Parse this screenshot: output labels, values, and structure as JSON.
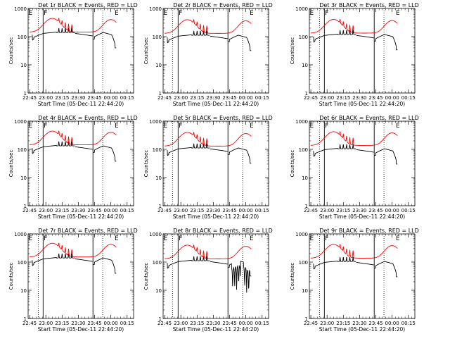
{
  "chart_data": {
    "type": "line",
    "xlabel": "Start Time (05-Dec-11 22:44:20)",
    "ylabel": "Counts/sec",
    "y_scale": "log",
    "ylim": [
      1,
      1000
    ],
    "y_tick_labels": [
      "1",
      "10",
      "100",
      "1000"
    ],
    "xlim_minutes": [
      -1.333,
      96
    ],
    "x_tick_labels": [
      "22:45",
      "23:00",
      "23:15",
      "23:30",
      "23:45",
      "00:00",
      "00:15"
    ],
    "series_colors": {
      "events": "#000000",
      "lld": "#ff0000"
    },
    "region_markers": [
      "E",
      "F",
      "E"
    ],
    "panels": [
      {
        "title": "Det 1r  BLACK = Events, RED = LLD",
        "solid_lines": [
          12.5,
          58.5
        ],
        "dotted_lines": [
          8,
          67.5
        ],
        "events_scale": 1.0,
        "lld_scale": 1.0,
        "events_dropouts": []
      },
      {
        "title": "Det 2r  BLACK = Events, RED = LLD",
        "solid_lines": [
          12.5,
          58.5
        ],
        "dotted_lines": [
          7.5,
          72
        ],
        "events_scale": 0.8,
        "lld_scale": 0.9,
        "events_dropouts": []
      },
      {
        "title": "Det 3r  BLACK = Events, RED = LLD",
        "solid_lines": [
          12.5,
          58.5
        ],
        "dotted_lines": [
          8,
          67.5
        ],
        "events_scale": 0.85,
        "lld_scale": 0.92,
        "events_dropouts": []
      },
      {
        "title": "Det 4r  BLACK = Events, RED = LLD",
        "solid_lines": [
          12.5,
          58.5
        ],
        "dotted_lines": [
          8,
          67.5
        ],
        "events_scale": 0.95,
        "lld_scale": 1.0,
        "events_dropouts": []
      },
      {
        "title": "Det 5r  BLACK = Events, RED = LLD",
        "solid_lines": [
          12.5,
          58.5
        ],
        "dotted_lines": [
          7.5,
          72
        ],
        "events_scale": 0.8,
        "lld_scale": 0.9,
        "events_dropouts": []
      },
      {
        "title": "Det 6r  BLACK = Events, RED = LLD",
        "solid_lines": [
          12.5,
          58.5
        ],
        "dotted_lines": [
          8,
          67.5
        ],
        "events_scale": 0.75,
        "lld_scale": 0.95,
        "events_dropouts": []
      },
      {
        "title": "Det 7r  BLACK = Events, RED = LLD",
        "solid_lines": [
          12.5,
          58.5
        ],
        "dotted_lines": [
          8,
          67.5
        ],
        "events_scale": 1.0,
        "lld_scale": 1.05,
        "events_dropouts": []
      },
      {
        "title": "Det 8r  BLACK = Events, RED = LLD",
        "solid_lines": [
          12.5,
          58.5
        ],
        "dotted_lines": [
          7.5,
          72
        ],
        "events_scale": 0.8,
        "lld_scale": 0.9,
        "events_dropouts": [
          [
            62,
            70
          ],
          [
            73,
            78
          ]
        ]
      },
      {
        "title": "Det 9r  BLACK = Events, RED = LLD",
        "solid_lines": [
          12.5,
          58.5
        ],
        "dotted_lines": [
          8,
          67.5
        ],
        "events_scale": 0.75,
        "lld_scale": 0.95,
        "events_dropouts": []
      }
    ]
  }
}
